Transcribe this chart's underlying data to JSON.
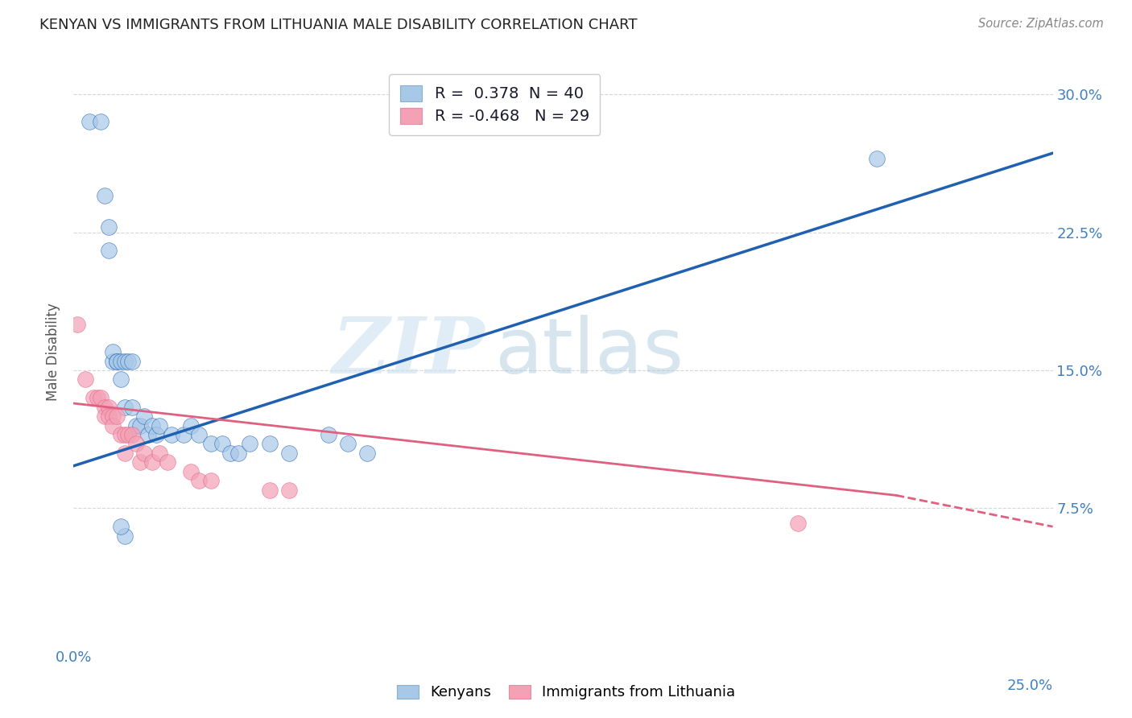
{
  "title": "KENYAN VS IMMIGRANTS FROM LITHUANIA MALE DISABILITY CORRELATION CHART",
  "source": "Source: ZipAtlas.com",
  "ylabel": "Male Disability",
  "legend_blue_r": "R =  0.378",
  "legend_blue_n": "N = 40",
  "legend_pink_r": "R = -0.468",
  "legend_pink_n": "N = 29",
  "watermark_zip": "ZIP",
  "watermark_atlas": "atlas",
  "blue_color": "#a8c8e8",
  "pink_color": "#f4a0b5",
  "blue_line_color": "#2060b0",
  "pink_line_color": "#e06080",
  "background_color": "#ffffff",
  "grid_color": "#cccccc",
  "xlim": [
    0.0,
    0.25
  ],
  "ylim": [
    0.0,
    0.32
  ],
  "yticks": [
    0.075,
    0.15,
    0.225,
    0.3
  ],
  "ytick_labels": [
    "7.5%",
    "15.0%",
    "22.5%",
    "30.0%"
  ],
  "xticks": [
    0.0,
    0.05,
    0.1,
    0.15,
    0.2,
    0.25
  ],
  "blue_x": [
    0.004,
    0.007,
    0.008,
    0.009,
    0.009,
    0.01,
    0.01,
    0.011,
    0.011,
    0.012,
    0.012,
    0.013,
    0.013,
    0.014,
    0.015,
    0.015,
    0.016,
    0.017,
    0.018,
    0.019,
    0.02,
    0.021,
    0.022,
    0.025,
    0.028,
    0.03,
    0.032,
    0.035,
    0.038,
    0.04,
    0.042,
    0.045,
    0.05,
    0.055,
    0.065,
    0.07,
    0.075,
    0.013,
    0.205,
    0.012
  ],
  "blue_y": [
    0.285,
    0.285,
    0.245,
    0.228,
    0.215,
    0.155,
    0.16,
    0.155,
    0.155,
    0.155,
    0.145,
    0.155,
    0.13,
    0.155,
    0.155,
    0.13,
    0.12,
    0.12,
    0.125,
    0.115,
    0.12,
    0.115,
    0.12,
    0.115,
    0.115,
    0.12,
    0.115,
    0.11,
    0.11,
    0.105,
    0.105,
    0.11,
    0.11,
    0.105,
    0.115,
    0.11,
    0.105,
    0.06,
    0.265,
    0.065
  ],
  "pink_x": [
    0.001,
    0.003,
    0.005,
    0.006,
    0.007,
    0.008,
    0.008,
    0.009,
    0.009,
    0.01,
    0.01,
    0.011,
    0.012,
    0.013,
    0.013,
    0.014,
    0.015,
    0.016,
    0.017,
    0.018,
    0.02,
    0.022,
    0.024,
    0.03,
    0.032,
    0.035,
    0.05,
    0.055,
    0.185
  ],
  "pink_y": [
    0.175,
    0.145,
    0.135,
    0.135,
    0.135,
    0.13,
    0.125,
    0.13,
    0.125,
    0.125,
    0.12,
    0.125,
    0.115,
    0.115,
    0.105,
    0.115,
    0.115,
    0.11,
    0.1,
    0.105,
    0.1,
    0.105,
    0.1,
    0.095,
    0.09,
    0.09,
    0.085,
    0.085,
    0.067
  ],
  "blue_trend_x0": 0.0,
  "blue_trend_y0": 0.098,
  "blue_trend_x1": 0.25,
  "blue_trend_y1": 0.268,
  "pink_trend_x0": 0.0,
  "pink_trend_y0": 0.132,
  "pink_trend_x1_solid": 0.21,
  "pink_trend_y1_solid": 0.082,
  "pink_trend_x1_dash": 0.25,
  "pink_trend_y1_dash": 0.065
}
